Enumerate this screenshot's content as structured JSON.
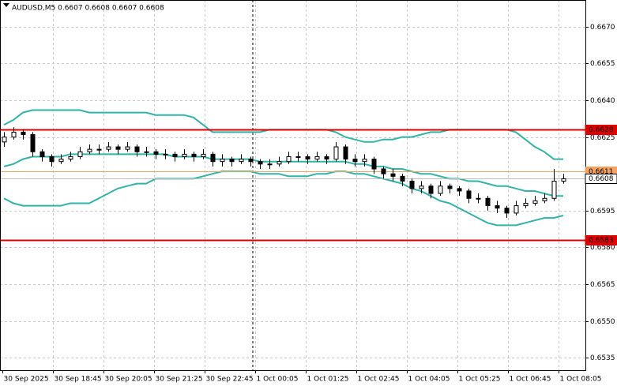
{
  "chart_data": {
    "type": "candlestick",
    "title": "AUDUSD,M5  0.6607 0.6608 0.6607 0.6608",
    "ylim": [
      0.65299,
      0.66809
    ],
    "yticks": [
      {
        "value": 0.667,
        "label": "0.6670"
      },
      0.6655,
      {
        "value": 0.664,
        "label": "0.6640"
      },
      0.6625,
      0.6595,
      {
        "value": 0.658,
        "label": "0.6580"
      },
      0.6565,
      {
        "value": 0.655,
        "label": "0.6550"
      },
      0.6535
    ],
    "grid": true,
    "x_labels": [
      "30 Sep 2025",
      "30 Sep 18:45",
      "30 Sep 20:05",
      "30 Sep 21:25",
      "30 Sep 22:45",
      "1 Oct 00:05",
      "1 Oct 01:25",
      "1 Oct 02:45",
      "1 Oct 04:05",
      "1 Oct 05:25",
      "1 Oct 06:45",
      "1 Oct 08:05"
    ],
    "candles": {
      "open": [
        0.6623,
        0.6625,
        0.6627,
        0.6626,
        0.6619,
        0.6617,
        0.6615,
        0.6616,
        0.6617,
        0.6619,
        0.662,
        0.662,
        0.6621,
        0.662,
        0.6621,
        0.6619,
        0.6619,
        0.6618,
        0.6618,
        0.6617,
        0.6618,
        0.6617,
        0.6618,
        0.6615,
        0.6616,
        0.6615,
        0.6616,
        0.6615,
        0.6614,
        0.6614,
        0.6615,
        0.6617,
        0.6617,
        0.6616,
        0.6617,
        0.6616,
        0.6621,
        0.6616,
        0.6615,
        0.6616,
        0.6612,
        0.661,
        0.6609,
        0.6607,
        0.6604,
        0.6605,
        0.6602,
        0.6605,
        0.6604,
        0.6603,
        0.66,
        0.66,
        0.6597,
        0.6596,
        0.6594,
        0.6597,
        0.6598,
        0.6599,
        0.66,
        0.6607
      ],
      "high": [
        0.6627,
        0.6629,
        0.6628,
        0.6627,
        0.662,
        0.6618,
        0.6618,
        0.6619,
        0.6621,
        0.6622,
        0.6622,
        0.6623,
        0.6622,
        0.6623,
        0.6622,
        0.6621,
        0.662,
        0.662,
        0.6619,
        0.662,
        0.6619,
        0.662,
        0.6619,
        0.6618,
        0.6617,
        0.6618,
        0.6617,
        0.6616,
        0.6616,
        0.6617,
        0.6619,
        0.6619,
        0.6618,
        0.6619,
        0.6618,
        0.6623,
        0.6622,
        0.6618,
        0.6618,
        0.6617,
        0.6613,
        0.6612,
        0.661,
        0.6608,
        0.6607,
        0.6606,
        0.6607,
        0.6606,
        0.6605,
        0.6604,
        0.6602,
        0.6601,
        0.6599,
        0.6597,
        0.6599,
        0.66,
        0.6601,
        0.6602,
        0.6612,
        0.661
      ],
      "low": [
        0.6621,
        0.6624,
        0.6624,
        0.6617,
        0.6615,
        0.6613,
        0.6614,
        0.6615,
        0.6616,
        0.6618,
        0.6618,
        0.6619,
        0.6618,
        0.6619,
        0.6617,
        0.6617,
        0.6616,
        0.6616,
        0.6615,
        0.6616,
        0.6615,
        0.6616,
        0.6613,
        0.6613,
        0.6613,
        0.6614,
        0.6613,
        0.6612,
        0.6612,
        0.6613,
        0.6614,
        0.6615,
        0.6614,
        0.6615,
        0.6614,
        0.6615,
        0.6614,
        0.6613,
        0.6613,
        0.661,
        0.6608,
        0.6607,
        0.6605,
        0.6602,
        0.6602,
        0.66,
        0.6601,
        0.6602,
        0.6601,
        0.6598,
        0.6598,
        0.6595,
        0.6594,
        0.6592,
        0.6593,
        0.6596,
        0.6597,
        0.6598,
        0.6599,
        0.6606
      ],
      "close": [
        0.6625,
        0.6627,
        0.6626,
        0.6619,
        0.6617,
        0.6615,
        0.6616,
        0.6617,
        0.6619,
        0.662,
        0.662,
        0.6621,
        0.662,
        0.6621,
        0.6619,
        0.6619,
        0.6618,
        0.6618,
        0.6617,
        0.6618,
        0.6617,
        0.6618,
        0.6615,
        0.6616,
        0.6615,
        0.6616,
        0.6615,
        0.6614,
        0.6614,
        0.6615,
        0.6617,
        0.6617,
        0.6616,
        0.6617,
        0.6616,
        0.6621,
        0.6616,
        0.6615,
        0.6616,
        0.6612,
        0.661,
        0.6609,
        0.6607,
        0.6604,
        0.6605,
        0.6602,
        0.6605,
        0.6604,
        0.6603,
        0.66,
        0.66,
        0.6597,
        0.6596,
        0.6594,
        0.6597,
        0.6598,
        0.6599,
        0.66,
        0.6607,
        0.6608
      ],
      "up_color": "#ffffff",
      "down_color": "#000000",
      "edge_color": "#000000"
    },
    "series": [
      {
        "color": "#2fb5a8",
        "values": [
          0.663,
          0.6632,
          0.6635,
          0.6636,
          0.6636,
          0.6636,
          0.6636,
          0.6636,
          0.6636,
          0.6635,
          0.6635,
          0.6635,
          0.6635,
          0.6635,
          0.6635,
          0.6635,
          0.6634,
          0.6634,
          0.6634,
          0.6634,
          0.6633,
          0.663,
          0.6627,
          0.6627,
          0.6627,
          0.6627,
          0.6627,
          0.6627,
          0.6628,
          0.6628,
          0.6628,
          0.6628,
          0.6628,
          0.6628,
          0.6628,
          0.6627,
          0.6625,
          0.6624,
          0.6623,
          0.6623,
          0.6624,
          0.6624,
          0.6625,
          0.6625,
          0.6626,
          0.6627,
          0.6627,
          0.6628,
          0.6628,
          0.6628,
          0.6628,
          0.6628,
          0.6628,
          0.6628,
          0.6627,
          0.6624,
          0.6621,
          0.6619,
          0.6616,
          0.6616
        ]
      },
      {
        "color": "#2fb5a8",
        "values": [
          0.6613,
          0.6614,
          0.6616,
          0.6617,
          0.6617,
          0.6617,
          0.6617,
          0.6618,
          0.6618,
          0.6618,
          0.6618,
          0.6618,
          0.6618,
          0.6618,
          0.6618,
          0.6618,
          0.6618,
          0.6618,
          0.6617,
          0.6617,
          0.6617,
          0.6617,
          0.6616,
          0.6616,
          0.6616,
          0.6616,
          0.6616,
          0.6615,
          0.6615,
          0.6615,
          0.6615,
          0.6615,
          0.6615,
          0.6615,
          0.6615,
          0.6615,
          0.6615,
          0.6614,
          0.6614,
          0.6613,
          0.6613,
          0.6612,
          0.6612,
          0.6611,
          0.661,
          0.661,
          0.6609,
          0.6608,
          0.6608,
          0.6607,
          0.6607,
          0.6606,
          0.6605,
          0.6605,
          0.6604,
          0.6603,
          0.6603,
          0.6602,
          0.6601,
          0.6601
        ]
      },
      {
        "color": "#2fb5a8",
        "values": [
          0.66,
          0.6598,
          0.6597,
          0.6597,
          0.6597,
          0.6597,
          0.6597,
          0.6598,
          0.6598,
          0.6598,
          0.66,
          0.6602,
          0.6604,
          0.6605,
          0.6606,
          0.6606,
          0.6608,
          0.6608,
          0.6608,
          0.6608,
          0.6608,
          0.6609,
          0.661,
          0.6611,
          0.6611,
          0.6611,
          0.6611,
          0.661,
          0.661,
          0.661,
          0.6609,
          0.6609,
          0.6609,
          0.661,
          0.661,
          0.6611,
          0.6611,
          0.661,
          0.661,
          0.6609,
          0.6608,
          0.6607,
          0.6606,
          0.6604,
          0.6603,
          0.6601,
          0.6599,
          0.6598,
          0.6596,
          0.6594,
          0.6592,
          0.659,
          0.6589,
          0.6589,
          0.6589,
          0.659,
          0.6591,
          0.6592,
          0.6592,
          0.6593
        ]
      }
    ],
    "levels": [
      {
        "value": 0.6628,
        "color": "#e00000",
        "text_color": "#ffffff"
      },
      {
        "value": 0.6611,
        "color": "#f4a460",
        "text_color": "#ffffff"
      },
      {
        "value": 0.6608,
        "color": "#c0c0c0",
        "text_color": "#000000"
      },
      {
        "value": 0.6583,
        "color": "#e00000",
        "text_color": "#ffffff"
      }
    ]
  }
}
